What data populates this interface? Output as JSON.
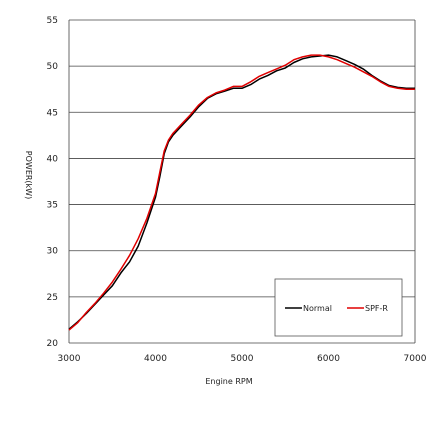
{
  "chart_data": {
    "type": "line",
    "title": "",
    "xlabel": "Engine RPM",
    "ylabel": "POWER(kW)",
    "xlim": [
      3000,
      7000
    ],
    "ylim": [
      20,
      55
    ],
    "xticks": [
      3000,
      4000,
      5000,
      6000,
      7000
    ],
    "yticks": [
      20,
      25,
      30,
      35,
      40,
      45,
      50,
      55
    ],
    "grid": "horizontal",
    "legend_position": "bottom-right",
    "series": [
      {
        "name": "Normal",
        "color": "#000000",
        "x": [
          3000,
          3100,
          3200,
          3300,
          3400,
          3500,
          3600,
          3700,
          3800,
          3900,
          4000,
          4050,
          4100,
          4150,
          4200,
          4300,
          4400,
          4500,
          4600,
          4700,
          4800,
          4900,
          5000,
          5100,
          5200,
          5300,
          5400,
          5500,
          5600,
          5700,
          5800,
          5900,
          6000,
          6100,
          6200,
          6300,
          6400,
          6500,
          6600,
          6700,
          6800,
          6900,
          7000
        ],
        "values": [
          21.5,
          22.3,
          23.2,
          24.2,
          25.2,
          26.2,
          27.6,
          28.8,
          30.5,
          33.0,
          35.8,
          38.0,
          40.5,
          41.8,
          42.5,
          43.5,
          44.5,
          45.6,
          46.5,
          47.0,
          47.3,
          47.6,
          47.6,
          48.0,
          48.6,
          49.0,
          49.5,
          49.8,
          50.4,
          50.8,
          51.0,
          51.1,
          51.2,
          51.0,
          50.6,
          50.2,
          49.7,
          49.0,
          48.4,
          47.9,
          47.7,
          47.6,
          47.6
        ]
      },
      {
        "name": "SPF-R",
        "color": "#e00000",
        "x": [
          3000,
          3100,
          3200,
          3300,
          3400,
          3500,
          3600,
          3700,
          3800,
          3900,
          4000,
          4050,
          4100,
          4150,
          4200,
          4300,
          4400,
          4500,
          4600,
          4700,
          4800,
          4900,
          5000,
          5100,
          5200,
          5300,
          5400,
          5500,
          5600,
          5700,
          5800,
          5900,
          6000,
          6100,
          6200,
          6300,
          6400,
          6500,
          6600,
          6700,
          6800,
          6900,
          7000
        ],
        "values": [
          21.4,
          22.2,
          23.3,
          24.3,
          25.4,
          26.6,
          28.0,
          29.5,
          31.3,
          33.5,
          36.2,
          38.5,
          40.8,
          42.0,
          42.7,
          43.7,
          44.7,
          45.8,
          46.6,
          47.1,
          47.4,
          47.8,
          47.8,
          48.3,
          48.9,
          49.3,
          49.7,
          50.1,
          50.7,
          51.0,
          51.2,
          51.2,
          51.0,
          50.7,
          50.3,
          49.9,
          49.4,
          48.9,
          48.3,
          47.8,
          47.6,
          47.5,
          47.5
        ]
      }
    ]
  }
}
